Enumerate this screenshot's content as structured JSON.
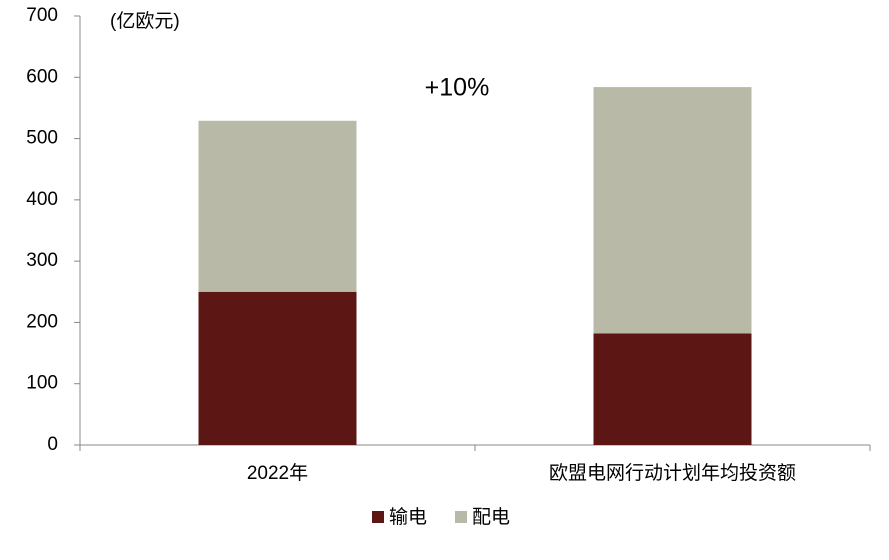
{
  "chart_data": {
    "type": "stacked_bar",
    "y_axis_label": "(亿欧元)",
    "annotation": "+10%",
    "categories": [
      "2022年",
      "欧盟电网行动计划年均投资额"
    ],
    "series": [
      {
        "name": "输电",
        "color": "#5c1614",
        "values": [
          250,
          182
        ]
      },
      {
        "name": "配电",
        "color": "#b8b9a6",
        "values": [
          279,
          402
        ]
      }
    ],
    "ylim": [
      0,
      700
    ],
    "yticks": [
      0,
      100,
      200,
      300,
      400,
      500,
      600,
      700
    ],
    "legend": "bottom",
    "grid": false
  }
}
